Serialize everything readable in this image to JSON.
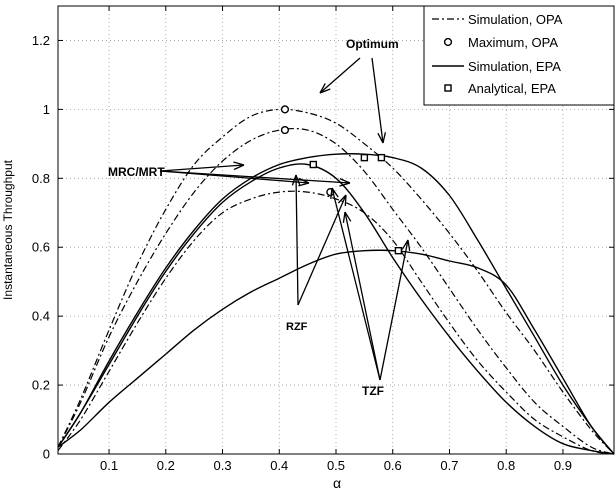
{
  "chart_data": {
    "type": "line",
    "title": "",
    "xlabel": "α",
    "ylabel": "Instantaneous Throughput",
    "xlim": [
      0.01,
      0.99
    ],
    "ylim": [
      0,
      1.3
    ],
    "xticks": [
      0.1,
      0.2,
      0.3,
      0.4,
      0.5,
      0.6,
      0.7,
      0.8,
      0.9
    ],
    "yticks": [
      0,
      0.2,
      0.4,
      0.6,
      0.8,
      1,
      1.2
    ],
    "xtick_labels": [
      "0.1",
      "0.2",
      "0.3",
      "0.4",
      "0.5",
      "0.6",
      "0.7",
      "0.8",
      "0.9"
    ],
    "ytick_labels": [
      "0",
      "0.2",
      "0.4",
      "0.6",
      "0.8",
      "1",
      "1.2"
    ],
    "grid": true,
    "legend_position": "top-right",
    "legend": [
      {
        "label": "Simulation, OPA",
        "style": "dashdot",
        "marker": "none"
      },
      {
        "label": "Maximum, OPA",
        "style": "none",
        "marker": "circle"
      },
      {
        "label": "Simulation, EPA",
        "style": "solid",
        "marker": "none"
      },
      {
        "label": "Analytical, EPA",
        "style": "none",
        "marker": "square"
      }
    ],
    "series": [
      {
        "group": "OPA",
        "scheme": "MRC/MRT",
        "style": "dashdot",
        "x": [
          0.01,
          0.05,
          0.1,
          0.15,
          0.2,
          0.25,
          0.3,
          0.35,
          0.4,
          0.45,
          0.5,
          0.55,
          0.6,
          0.65,
          0.7,
          0.75,
          0.8,
          0.85,
          0.9,
          0.95,
          0.99
        ],
        "y": [
          0.02,
          0.16,
          0.36,
          0.55,
          0.71,
          0.84,
          0.92,
          0.98,
          1.0,
          0.99,
          0.96,
          0.9,
          0.83,
          0.74,
          0.64,
          0.53,
          0.41,
          0.3,
          0.18,
          0.07,
          0
        ]
      },
      {
        "group": "OPA",
        "scheme": "RZF",
        "style": "dashdot",
        "x": [
          0.01,
          0.05,
          0.1,
          0.15,
          0.2,
          0.25,
          0.3,
          0.35,
          0.4,
          0.45,
          0.5,
          0.55,
          0.6,
          0.65,
          0.7,
          0.75,
          0.8,
          0.85,
          0.9,
          0.95,
          0.99
        ],
        "y": [
          0.02,
          0.15,
          0.34,
          0.5,
          0.64,
          0.76,
          0.85,
          0.91,
          0.94,
          0.94,
          0.9,
          0.82,
          0.71,
          0.6,
          0.48,
          0.36,
          0.25,
          0.15,
          0.08,
          0.02,
          0
        ]
      },
      {
        "group": "OPA",
        "scheme": "TZF",
        "style": "dashdot",
        "x": [
          0.01,
          0.05,
          0.1,
          0.15,
          0.2,
          0.25,
          0.3,
          0.35,
          0.4,
          0.45,
          0.5,
          0.55,
          0.6,
          0.65,
          0.7,
          0.75,
          0.8,
          0.85,
          0.9,
          0.95,
          0.99
        ],
        "y": [
          0.01,
          0.1,
          0.24,
          0.38,
          0.51,
          0.62,
          0.7,
          0.74,
          0.76,
          0.76,
          0.74,
          0.7,
          0.62,
          0.5,
          0.38,
          0.27,
          0.18,
          0.1,
          0.05,
          0.01,
          0
        ]
      },
      {
        "group": "EPA",
        "scheme": "MRC/MRT",
        "style": "solid",
        "x": [
          0.01,
          0.05,
          0.1,
          0.15,
          0.2,
          0.25,
          0.3,
          0.35,
          0.4,
          0.45,
          0.5,
          0.55,
          0.6,
          0.65,
          0.7,
          0.75,
          0.8,
          0.85,
          0.9,
          0.95,
          0.99
        ],
        "y": [
          0.02,
          0.12,
          0.27,
          0.41,
          0.54,
          0.65,
          0.74,
          0.8,
          0.84,
          0.86,
          0.87,
          0.87,
          0.86,
          0.83,
          0.75,
          0.62,
          0.48,
          0.34,
          0.2,
          0.08,
          0
        ]
      },
      {
        "group": "EPA",
        "scheme": "RZF",
        "style": "solid",
        "x": [
          0.01,
          0.05,
          0.1,
          0.15,
          0.2,
          0.25,
          0.3,
          0.35,
          0.4,
          0.45,
          0.5,
          0.55,
          0.6,
          0.65,
          0.7,
          0.75,
          0.8,
          0.85,
          0.9,
          0.95,
          0.99
        ],
        "y": [
          0.02,
          0.12,
          0.26,
          0.4,
          0.53,
          0.64,
          0.73,
          0.79,
          0.83,
          0.84,
          0.8,
          0.7,
          0.57,
          0.45,
          0.34,
          0.24,
          0.15,
          0.08,
          0.03,
          0.01,
          0
        ]
      },
      {
        "group": "EPA",
        "scheme": "TZF",
        "style": "solid",
        "x": [
          0.01,
          0.05,
          0.1,
          0.15,
          0.2,
          0.25,
          0.3,
          0.35,
          0.4,
          0.45,
          0.5,
          0.55,
          0.6,
          0.65,
          0.7,
          0.75,
          0.8,
          0.85,
          0.9,
          0.95,
          0.99
        ],
        "y": [
          0.02,
          0.07,
          0.15,
          0.22,
          0.29,
          0.36,
          0.42,
          0.47,
          0.51,
          0.55,
          0.58,
          0.59,
          0.59,
          0.58,
          0.56,
          0.54,
          0.49,
          0.36,
          0.22,
          0.08,
          0
        ]
      }
    ],
    "markers": {
      "opa_maximum": [
        {
          "scheme": "MRC/MRT",
          "x": 0.41,
          "y": 1.0
        },
        {
          "scheme": "RZF",
          "x": 0.41,
          "y": 0.94
        },
        {
          "scheme": "TZF",
          "x": 0.49,
          "y": 0.76
        }
      ],
      "epa_analytical": [
        {
          "scheme": "MRC/MRT",
          "x": 0.58,
          "y": 0.86
        },
        {
          "scheme": "RZF",
          "x": 0.46,
          "y": 0.84
        },
        {
          "scheme": "TZF",
          "x": 0.61,
          "y": 0.59
        },
        {
          "scheme": "MRC/MRT",
          "x": 0.55,
          "y": 0.86
        }
      ]
    },
    "annotations": [
      {
        "text": "Optimum"
      },
      {
        "text": "MRC/MRT"
      },
      {
        "text": "RZF"
      },
      {
        "text": "TZF"
      }
    ]
  }
}
